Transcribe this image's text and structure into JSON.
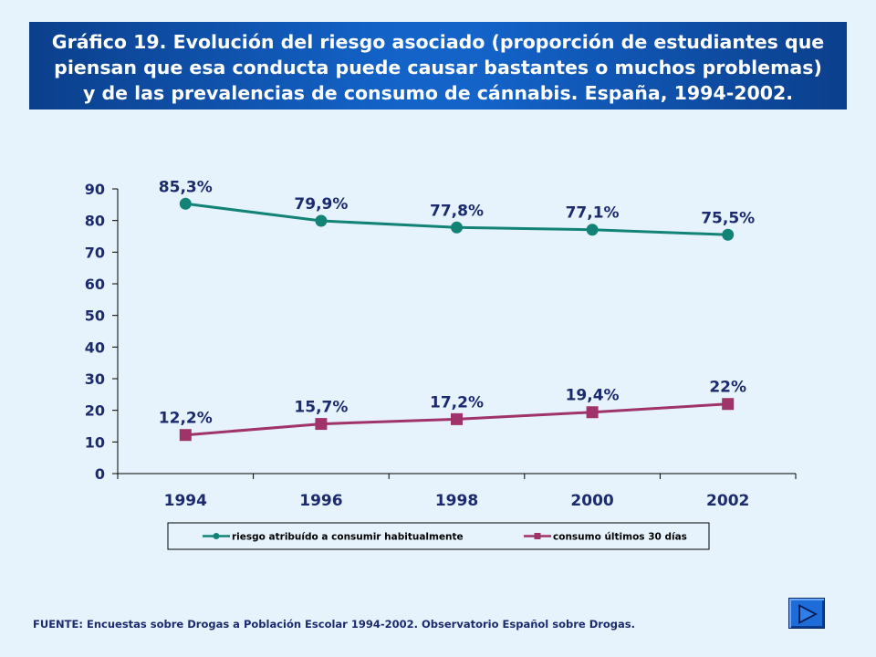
{
  "header": {
    "title_lines": [
      "Gráfico 19. Evolución del riesgo asociado (proporción de estudiantes que",
      "piensan que esa conducta puede causar bastantes o muchos problemas)",
      "y de las prevalencias de consumo de cánnabis. España, 1994-2002."
    ]
  },
  "chart_data": {
    "type": "line",
    "categories": [
      "1994",
      "1996",
      "1998",
      "2000",
      "2002"
    ],
    "ylim": [
      0,
      90
    ],
    "yticks": [
      "0",
      "10",
      "20",
      "30",
      "40",
      "50",
      "60",
      "70",
      "80",
      "90"
    ],
    "grid": false,
    "legend_position": "bottom",
    "series": [
      {
        "name": "riesgo atribuído a consumir habitualmente",
        "values": [
          85.3,
          79.9,
          77.8,
          77.1,
          75.5
        ],
        "labels": [
          "85,3%",
          "79,9%",
          "77,8%",
          "77,1%",
          "75,5%"
        ],
        "color": "#138277",
        "marker": "circle"
      },
      {
        "name": "consumo últimos 30 días",
        "values": [
          12.2,
          15.7,
          17.2,
          19.4,
          22
        ],
        "labels": [
          "12,2%",
          "15,7%",
          "17,2%",
          "19,4%",
          "22%"
        ],
        "color": "#a0336a",
        "marker": "square"
      }
    ]
  },
  "footer": {
    "source": "FUENTE: Encuestas sobre Drogas a Población Escolar 1994-2002.  Observatorio Español sobre Drogas."
  },
  "colors": {
    "background": "#e6f3fc",
    "axis": "#000000",
    "label_text": "#1c2a6e",
    "nav_button": "#1e6cd8"
  },
  "icons": {
    "next": "play-right-icon"
  }
}
